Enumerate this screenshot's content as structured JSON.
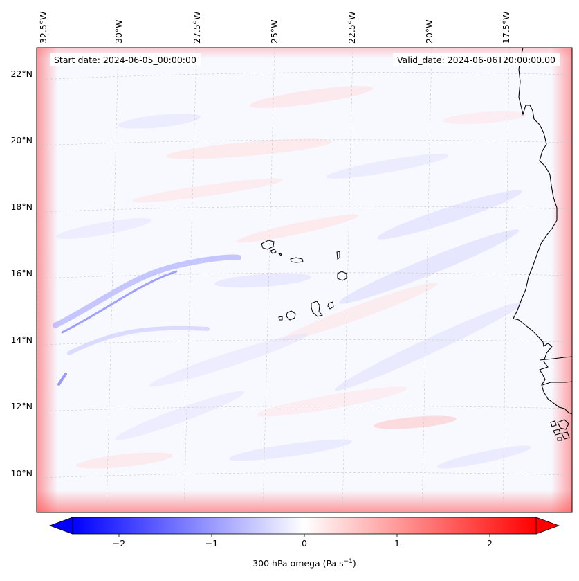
{
  "map": {
    "start_date_label": "Start date: 2024-06-05_00:00:00",
    "valid_date_label": "Valid_date: 2024-06-06T20:00:00.00",
    "longitude_labels": [
      "32.5°W",
      "30°W",
      "27.5°W",
      "25°W",
      "22.5°W",
      "20°W",
      "17.5°W"
    ],
    "latitude_labels": [
      "22°N",
      "20°N",
      "18°N",
      "16°N",
      "14°N",
      "12°N",
      "10°N"
    ],
    "field": "300 hPa omega",
    "units": "Pa s⁻¹",
    "islands": "Cape Verde",
    "coastline": "West Africa (Mauritania, Senegal, Gambia, Guinea-Bissau)"
  },
  "colorbar": {
    "label_text": "300 hPa omega (Pa s",
    "label_exp": "−1",
    "label_close": ")",
    "tick_labels": [
      "−2",
      "−1",
      "0",
      "1",
      "2"
    ],
    "tick_values": [
      -2,
      -1,
      0,
      1,
      2
    ],
    "min": -2.5,
    "max": 2.5,
    "colormap": "bwr",
    "extend": "both",
    "low_color": "#0000ff",
    "mid_color": "#ffffff",
    "high_color": "#ff0000"
  }
}
